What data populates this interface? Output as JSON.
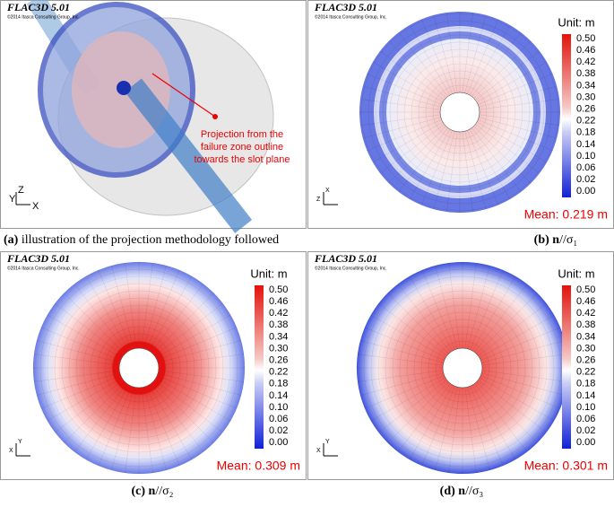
{
  "panels": [
    {
      "software": "FLAC3D 5.01",
      "copyright": "©2014 Itasca Consulting Group, Inc.",
      "axes": [
        "Y",
        "Z",
        "X"
      ],
      "annotation": [
        "Projection from the",
        "failure zone outline",
        "towards the slot plane"
      ],
      "caption_label": "(a)",
      "caption": "illustration of the projection methodology followed"
    },
    {
      "software": "FLAC3D 5.01",
      "copyright": "©2014 Itasca Consulting Group, Inc.",
      "axes": [
        "Z",
        "X"
      ],
      "unit": "Unit: m",
      "mean": "Mean: 0.219 m",
      "caption_label": "(b)",
      "caption_bold": "n",
      "caption": "//σ₁"
    },
    {
      "software": "FLAC3D 5.01",
      "copyright": "©2014 Itasca Consulting Group, Inc.",
      "axes": [
        "X",
        "Y"
      ],
      "unit": "Unit: m",
      "mean": "Mean: 0.309 m",
      "caption_label": "(c)",
      "caption_bold": "n",
      "caption": "//σ₂"
    },
    {
      "software": "FLAC3D 5.01",
      "copyright": "©2014 Itasca Consulting Group, Inc.",
      "axes": [
        "X",
        "Y"
      ],
      "unit": "Unit: m",
      "mean": "Mean: 0.301 m",
      "caption_label": "(d)",
      "caption_bold": "n",
      "caption": "//σ₃"
    }
  ],
  "colorbar_labels": [
    "0.50",
    "0.46",
    "0.42",
    "0.38",
    "0.34",
    "0.30",
    "0.26",
    "0.22",
    "0.18",
    "0.14",
    "0.10",
    "0.06",
    "0.02",
    "0.00"
  ]
}
